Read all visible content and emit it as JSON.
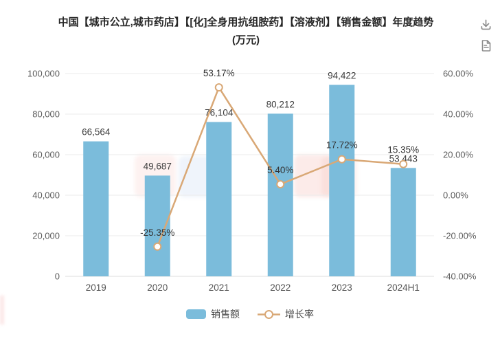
{
  "header": {
    "title_line1": "中国【城市公立,城市药店】【[化]全身用抗组胺药】【溶液剂】【销售金额】年度趋势",
    "title_line2": "(万元)",
    "download_icon": "download-icon",
    "report_icon": "report-icon"
  },
  "chart_data": {
    "type": "bar-line-combo",
    "title": "中国【城市公立,城市药店】【[化]全身用抗组胺药】【溶液剂】【销售金额】年度趋势(万元)",
    "categories": [
      "2019",
      "2020",
      "2021",
      "2022",
      "2023",
      "2024H1"
    ],
    "series": [
      {
        "name": "销售额",
        "type": "bar",
        "axis": "left",
        "color": "#7BBCDB",
        "values": [
          66564,
          49687,
          76104,
          80212,
          94422,
          53443
        ],
        "labels": [
          "66,564",
          "49,687",
          "76,104",
          "80,212",
          "94,422",
          "53,443"
        ]
      },
      {
        "name": "增长率",
        "type": "line",
        "axis": "right",
        "color": "#D9A876",
        "values": [
          null,
          -25.35,
          53.17,
          5.4,
          17.72,
          15.35
        ],
        "labels": [
          null,
          "-25.35%",
          "53.17%",
          "5.40%",
          "17.72%",
          "15.35%"
        ]
      }
    ],
    "left_axis": {
      "min": 0,
      "max": 100000,
      "tick_labels": [
        "100,000",
        "80,000",
        "60,000",
        "40,000",
        "20,000",
        "0"
      ]
    },
    "right_axis": {
      "min": -40,
      "max": 60,
      "tick_labels": [
        "60.00%",
        "40.00%",
        "20.00%",
        "0.00%",
        "-20.00%",
        "-40.00%"
      ]
    },
    "grid": true,
    "legend_position": "bottom",
    "legend": [
      {
        "label": "销售额"
      },
      {
        "label": "增长率"
      }
    ]
  }
}
